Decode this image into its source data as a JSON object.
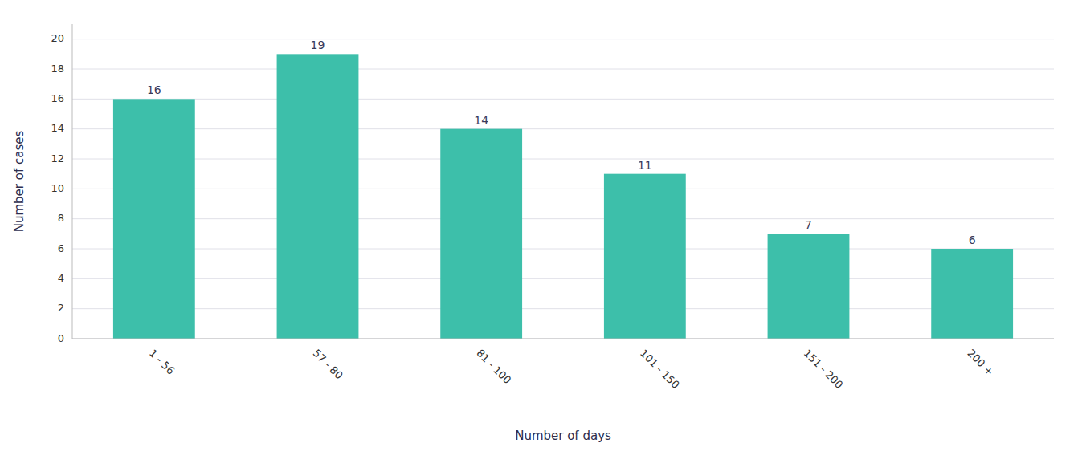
{
  "chart_data": {
    "type": "bar",
    "categories": [
      "1 - 56",
      "57 - 80",
      "81 - 100",
      "101 - 150",
      "151 - 200",
      "200 +"
    ],
    "values": [
      16,
      19,
      14,
      11,
      7,
      6
    ],
    "color": "#3dbfaa",
    "xlabel": "Number of days",
    "ylabel": "Number of cases",
    "ylim": [
      0,
      21
    ],
    "yticks": [
      0,
      2,
      4,
      6,
      8,
      10,
      12,
      14,
      16,
      18,
      20
    ],
    "grid": true,
    "data_labels": true
  }
}
